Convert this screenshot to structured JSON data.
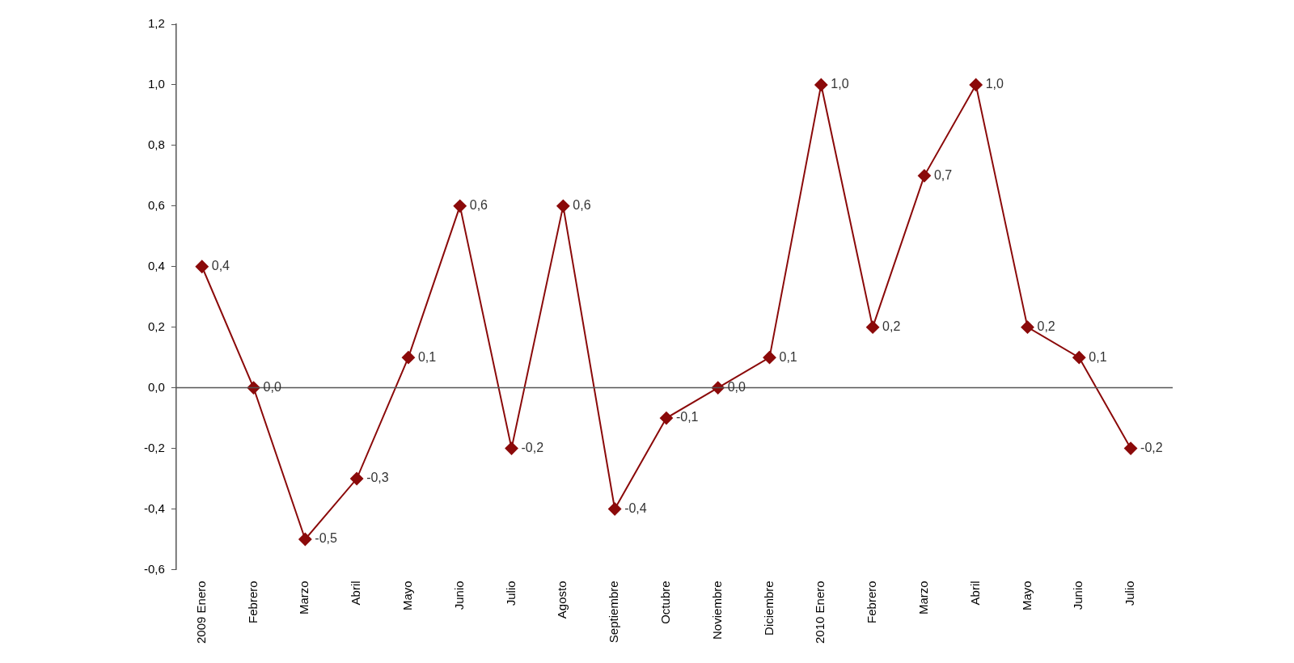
{
  "chart_data": {
    "type": "line",
    "categories": [
      "2009 Enero",
      "Febrero",
      "Marzo",
      "Abril",
      "Mayo",
      "Junio",
      "Julio",
      "Agosto",
      "Septiembre",
      "Octubre",
      "Noviembre",
      "Diciembre",
      "2010 Enero",
      "Febrero",
      "Marzo",
      "Abril",
      "Mayo",
      "Junio",
      "Julio"
    ],
    "values": [
      0.4,
      0.0,
      -0.5,
      -0.3,
      0.1,
      0.6,
      -0.2,
      0.6,
      -0.4,
      -0.1,
      0.0,
      0.1,
      1.0,
      0.2,
      0.7,
      1.0,
      0.2,
      0.1,
      -0.2
    ],
    "value_labels": [
      "0,4",
      "0,0",
      "-0,5",
      "-0,3",
      "0,1",
      "0,6",
      "-0,2",
      "0,6",
      "-0,4",
      "-0,1",
      "0,0",
      "0,1",
      "1,0",
      "0,2",
      "0,7",
      "1,0",
      "0,2",
      "0,1",
      "-0,2"
    ],
    "color": "#8b0a0a",
    "marker": "diamond",
    "line_style": "solid",
    "data_labels": true,
    "grid": false,
    "ylim": [
      -0.6,
      1.2
    ],
    "yticks": [
      {
        "value": -0.6,
        "label": "-0,6"
      },
      {
        "value": -0.4,
        "label": "-0,4"
      },
      {
        "value": -0.2,
        "label": "-0,2"
      },
      {
        "value": 0.0,
        "label": "0,0"
      },
      {
        "value": 0.2,
        "label": "0,2"
      },
      {
        "value": 0.4,
        "label": "0,4"
      },
      {
        "value": 0.6,
        "label": "0,6"
      },
      {
        "value": 0.8,
        "label": "0,8"
      },
      {
        "value": 1.0,
        "label": "1,0"
      },
      {
        "value": 1.2,
        "label": "1,2"
      }
    ]
  }
}
